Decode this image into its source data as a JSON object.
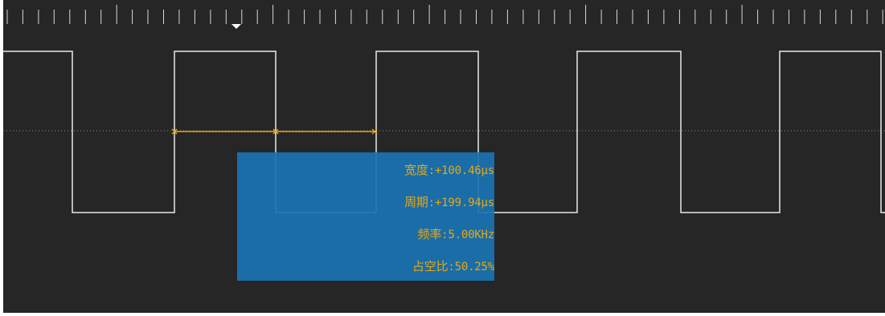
{
  "scope": {
    "background": "#262626",
    "trace_color": "#e8e8e8",
    "marker_color": "#e6a817",
    "trigger_marker_icon": "trigger-arrow-down-icon",
    "signal": {
      "type": "square",
      "duty_cycle": 0.5025
    }
  },
  "measurements": {
    "width": {
      "label": "宽度",
      "sep": ":",
      "value": "+100.46μs"
    },
    "period": {
      "label": "周期",
      "sep": ":",
      "value": "+199.94μs"
    },
    "freq": {
      "label": "频率",
      "sep": ":",
      "value": "5.00KHz"
    },
    "duty": {
      "label": "占空比",
      "sep": ":",
      "value": "50.25%"
    },
    "panel_color": "#1a73b2",
    "text_color": "#e6a817"
  }
}
